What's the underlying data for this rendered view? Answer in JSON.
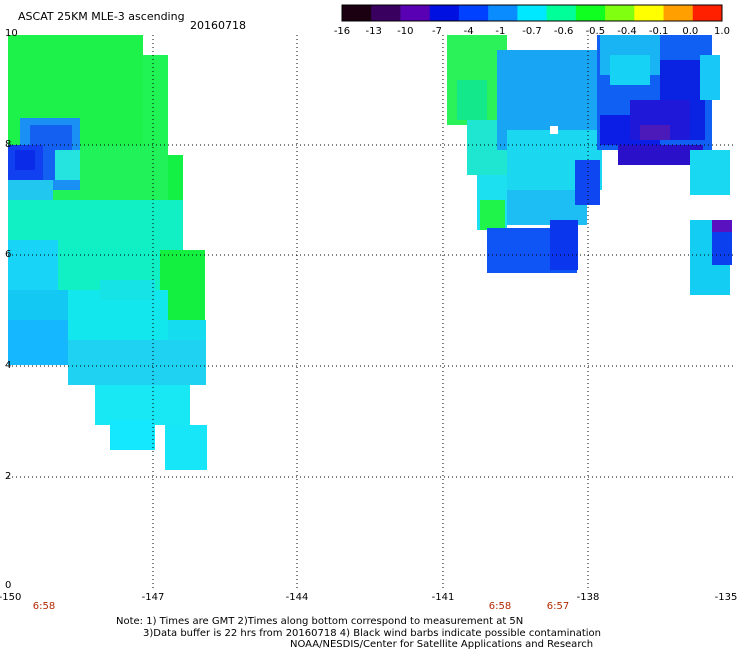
{
  "header": {
    "title": "ASCAT 25KM MLE-3 ascending",
    "date": "20160718"
  },
  "colorbar": {
    "labels": [
      "-16",
      "-13",
      "-10",
      "-7",
      "-4",
      "-1",
      "-0.7",
      "-0.6",
      "-0.5",
      "-0.4",
      "-0.1",
      "0.0",
      "1.0"
    ],
    "colors": [
      "#1a0010",
      "#3a0060",
      "#5a00b4",
      "#0010e0",
      "#0040ff",
      "#0a8cff",
      "#00e8ff",
      "#00ff99",
      "#10ff20",
      "#80ff10",
      "#ffff00",
      "#ffa000",
      "#ff2000"
    ]
  },
  "map": {
    "y_axis": [
      "10",
      "8",
      "6",
      "4",
      "2",
      "0"
    ],
    "x_axis": [
      "-150",
      "-147",
      "-144",
      "-141",
      "-138",
      "-135"
    ],
    "times": [
      "6:58",
      "6:58",
      "6:57"
    ]
  },
  "notes": {
    "line1": "Note: 1) Times are GMT 2)Times along bottom correspond to measurement at 5N",
    "line2": "3)Data buffer is 22 hrs from 20160718 4) Black wind barbs indicate possible contamination",
    "line3": "NOAA/NESDIS/Center for Satellite Applications and Research"
  }
}
